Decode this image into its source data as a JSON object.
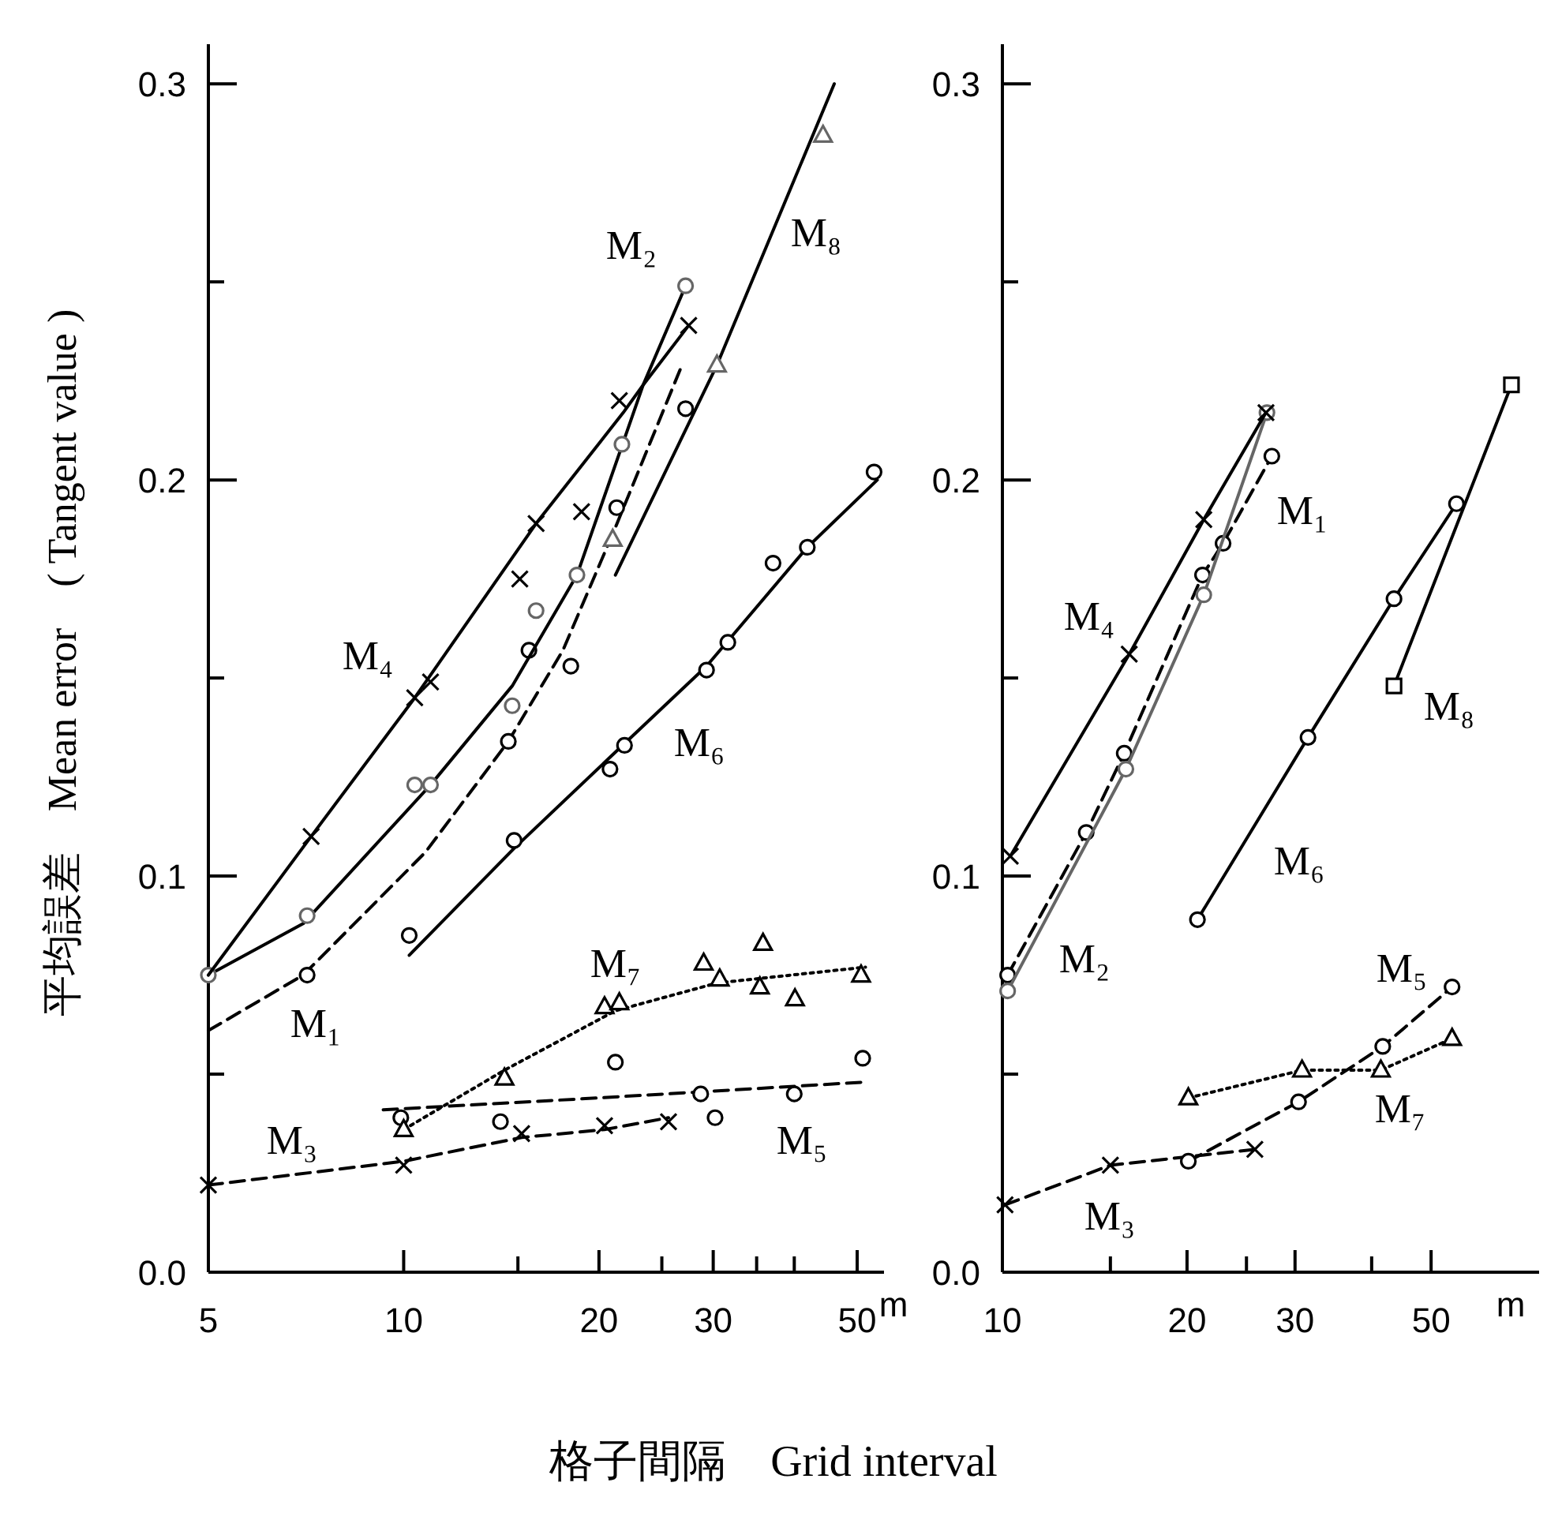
{
  "chart_data": [
    {
      "type": "line",
      "log": "x",
      "ylabel": "平均誤差　Mean error　( Tangent value )",
      "xlabel": "格子間隔　Grid interval",
      "xlim": [
        5,
        55
      ],
      "ylim": [
        0,
        0.31
      ],
      "xticks": [
        5,
        10,
        {
          "value": 15,
          "label": null
        },
        20,
        {
          "value": 25,
          "label": null
        },
        30,
        {
          "value": 35,
          "label": null
        },
        {
          "value": 40,
          "label": null
        },
        50
      ],
      "yticks": [
        {
          "value": 0,
          "label": "0.0"
        },
        {
          "value": 0.05,
          "label": null
        },
        0.1,
        {
          "value": 0.15,
          "label": null
        },
        0.2,
        {
          "value": 0.25,
          "label": null
        },
        0.3
      ],
      "annotations": [
        "m",
        "M₄",
        "M₁",
        "M₂",
        "M₈",
        "M₆",
        "M₇",
        "M₃",
        "M₅"
      ],
      "series": [
        {
          "line_style": "dashed",
          "marker": "none",
          "color": "#000000",
          "x": [
            5,
            7,
            10.8,
            14.5,
            17.6,
            21.2,
            26.7
          ],
          "values": [
            0.061,
            0.075,
            0.106,
            0.134,
            0.157,
            0.188,
            0.228
          ]
        },
        {
          "type": "scatter",
          "marker": "circle",
          "color": "#000000",
          "x": [
            7.1,
            14.5,
            15.6,
            18.1,
            21.3,
            27.2
          ],
          "values": [
            0.075,
            0.134,
            0.157,
            0.153,
            0.193,
            0.218
          ]
        },
        {
          "line_style": "solid",
          "marker": "none",
          "color": "#000000",
          "x": [
            5,
            7,
            9.3,
            11,
            14.7,
            18.5,
            23.4,
            27.2
          ],
          "values": [
            0.075,
            0.088,
            0.11,
            0.123,
            0.148,
            0.176,
            0.224,
            0.249
          ]
        },
        {
          "type": "scatter",
          "marker": "circle",
          "color": "#666666",
          "x": [
            5,
            7.1,
            10.4,
            11,
            14.7,
            16,
            18.5,
            21.7,
            27.2
          ],
          "values": [
            0.075,
            0.09,
            0.123,
            0.123,
            0.143,
            0.167,
            0.176,
            0.209,
            0.249
          ]
        },
        {
          "line_style": "dashed",
          "marker": "none",
          "color": "#000000",
          "x": [
            5,
            10,
            15.2,
            20.4,
            25.6
          ],
          "values": [
            0.022,
            0.028,
            0.034,
            0.036,
            0.039
          ]
        },
        {
          "type": "scatter",
          "marker": "cross",
          "color": "#000000",
          "x": [
            5,
            10,
            15.2,
            20.4,
            25.6
          ],
          "values": [
            0.022,
            0.027,
            0.035,
            0.037,
            0.038
          ]
        },
        {
          "line_style": "solid",
          "marker": "none",
          "color": "#000000",
          "x": [
            5,
            7.2,
            10.4,
            16,
            21.8,
            23.4,
            27.5
          ],
          "values": [
            0.075,
            0.11,
            0.145,
            0.189,
            0.217,
            0.224,
            0.239
          ]
        },
        {
          "type": "scatter",
          "marker": "cross",
          "color": "#000000",
          "x": [
            7.2,
            10.4,
            11,
            15.1,
            16,
            18.8,
            21.5,
            27.5
          ],
          "values": [
            0.11,
            0.145,
            0.149,
            0.175,
            0.189,
            0.192,
            0.22,
            0.239
          ]
        },
        {
          "line_style": "dashed",
          "marker": "none",
          "color": "#000000",
          "x": [
            9.3,
            20,
            51.5
          ],
          "values": [
            0.041,
            0.044,
            0.048
          ]
        },
        {
          "type": "scatter",
          "marker": "circle",
          "color": "#000000",
          "x": [
            9.9,
            14.1,
            21.2,
            28.7,
            30.2,
            40,
            51
          ],
          "values": [
            0.039,
            0.038,
            0.053,
            0.045,
            0.039,
            0.045,
            0.054
          ]
        },
        {
          "line_style": "solid",
          "marker": "none",
          "color": "#000000",
          "x": [
            10.2,
            14.8,
            20.8,
            29.3,
            41.9,
            53.7
          ],
          "values": [
            0.08,
            0.107,
            0.13,
            0.153,
            0.183,
            0.2
          ]
        },
        {
          "type": "scatter",
          "marker": "circle",
          "color": "#000000",
          "x": [
            10.2,
            14.8,
            20.8,
            21.9,
            29.3,
            31.6,
            37.1,
            41.9,
            53.1
          ],
          "values": [
            0.085,
            0.109,
            0.127,
            0.133,
            0.152,
            0.159,
            0.179,
            0.183,
            0.202
          ]
        },
        {
          "line_style": "dotted",
          "marker": "none",
          "color": "#000000",
          "x": [
            10,
            14.3,
            21.2,
            30.4,
            51.5
          ],
          "values": [
            0.036,
            0.051,
            0.066,
            0.073,
            0.077
          ]
        },
        {
          "type": "scatter",
          "marker": "triangle",
          "color": "#000000",
          "x": [
            10,
            14.3,
            20.4,
            21.5,
            29,
            30.7,
            35.4,
            35.8,
            40.1,
            50.7
          ],
          "values": [
            0.036,
            0.049,
            0.067,
            0.068,
            0.078,
            0.074,
            0.072,
            0.083,
            0.069,
            0.075
          ]
        },
        {
          "line_style": "solid",
          "marker": "none",
          "color": "#000000",
          "x": [
            21.2,
            30.4,
            46.1
          ],
          "values": [
            0.176,
            0.229,
            0.3
          ]
        },
        {
          "type": "scatter",
          "marker": "triangle",
          "color": "#666666",
          "x": [
            21,
            30.4,
            44.3
          ],
          "values": [
            0.185,
            0.229,
            0.287
          ]
        }
      ]
    },
    {
      "type": "line",
      "log": "x",
      "xlim": [
        10,
        75
      ],
      "ylim": [
        0,
        0.31
      ],
      "xticks": [
        10,
        {
          "value": 15,
          "label": null
        },
        20,
        {
          "value": 25,
          "label": null
        },
        30,
        {
          "value": 40,
          "label": null
        },
        50
      ],
      "yticks": [
        {
          "value": 0,
          "label": "0.0"
        },
        {
          "value": 0.05,
          "label": null
        },
        0.1,
        {
          "value": 0.15,
          "label": null
        },
        0.2,
        {
          "value": 0.25,
          "label": null
        },
        0.3
      ],
      "annotations": [
        "m",
        "M₄",
        "M₁",
        "M₈",
        "M₆",
        "M₂",
        "M₅",
        "M₇",
        "M₃"
      ],
      "series": [
        {
          "line_style": "dashed",
          "marker": "circle",
          "color": "#000000",
          "x": [
            10.2,
            13.7,
            15.8,
            21.2,
            22.9,
            27.5
          ],
          "values": [
            0.075,
            0.111,
            0.131,
            0.176,
            0.184,
            0.206
          ]
        },
        {
          "line_style": "solid",
          "marker": "circle",
          "color": "#666666",
          "x": [
            10.2,
            15.9,
            21.3,
            27
          ],
          "values": [
            0.071,
            0.127,
            0.171,
            0.217
          ]
        },
        {
          "line_style": "dashed",
          "marker": "cross",
          "color": "#000000",
          "x": [
            10.1,
            15,
            25.8
          ],
          "values": [
            0.017,
            0.027,
            0.031
          ]
        },
        {
          "line_style": "solid",
          "marker": "cross",
          "color": "#000000",
          "x": [
            10.3,
            16.1,
            21.3,
            26.9
          ],
          "values": [
            0.105,
            0.156,
            0.19,
            0.217
          ]
        },
        {
          "line_style": "dashed",
          "marker": "circle",
          "color": "#000000",
          "x": [
            20.1,
            30.4,
            41.7,
            54.1
          ],
          "values": [
            0.028,
            0.043,
            0.057,
            0.072
          ]
        },
        {
          "line_style": "solid",
          "marker": "circle",
          "color": "#000000",
          "x": [
            20.8,
            31.5,
            43.5,
            55
          ],
          "values": [
            0.089,
            0.135,
            0.17,
            0.194
          ]
        },
        {
          "line_style": "dotted",
          "marker": "triangle",
          "color": "#000000",
          "x": [
            20.1,
            30.8,
            41.4,
            54.1
          ],
          "values": [
            0.044,
            0.051,
            0.051,
            0.059
          ]
        },
        {
          "line_style": "solid",
          "marker": "square",
          "color": "#000000",
          "x": [
            43.5,
            67.6
          ],
          "values": [
            0.148,
            0.224
          ]
        }
      ]
    }
  ]
}
